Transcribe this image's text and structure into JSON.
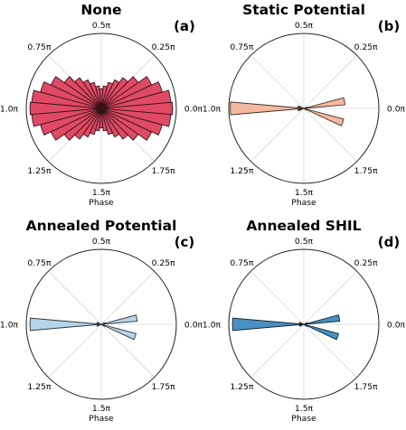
{
  "chart_data": [
    {
      "type": "polar-histogram",
      "title": "None",
      "panel_label": "(a)",
      "axis_label": "Phase",
      "tick_labels": [
        "0.0π",
        "0.25π",
        "0.5π",
        "0.75π",
        "1.0π",
        "1.25π",
        "1.5π",
        "1.75π"
      ],
      "color": "#e04a64",
      "bins": 36,
      "radial_max": 1.0,
      "values": [
        0.95,
        0.93,
        0.84,
        0.74,
        0.6,
        0.5,
        0.42,
        0.36,
        0.3,
        0.26,
        0.3,
        0.36,
        0.42,
        0.5,
        0.6,
        0.74,
        0.84,
        0.93,
        0.95,
        0.93,
        0.84,
        0.74,
        0.6,
        0.5,
        0.42,
        0.36,
        0.3,
        0.26,
        0.3,
        0.36,
        0.42,
        0.5,
        0.6,
        0.74,
        0.84,
        0.93
      ],
      "grid": true
    },
    {
      "type": "polar-histogram",
      "title": "Static Potential",
      "panel_label": "(b)",
      "axis_label": "Phase",
      "tick_labels": [
        "0.0π",
        "0.25π",
        "0.5π",
        "0.75π",
        "1.0π",
        "1.25π",
        "1.5π",
        "1.75π"
      ],
      "color": "#f5b8a0",
      "bins": 36,
      "radial_max": 1.0,
      "values": [
        0.0,
        0.55,
        0.04,
        0,
        0,
        0,
        0,
        0,
        0,
        0,
        0,
        0,
        0,
        0,
        0,
        0,
        0.08,
        0.03,
        0.98,
        0.03,
        0.08,
        0,
        0,
        0,
        0,
        0,
        0,
        0,
        0,
        0,
        0,
        0,
        0,
        0.04,
        0.55,
        0.0
      ],
      "grid": true
    },
    {
      "type": "polar-histogram",
      "title": "Annealed Potential",
      "panel_label": "(c)",
      "axis_label": "Phase",
      "tick_labels": [
        "0.0π",
        "0.25π",
        "0.5π",
        "0.75π",
        "1.0π",
        "1.25π",
        "1.5π",
        "1.75π"
      ],
      "color": "#b7d5e8",
      "bins": 36,
      "radial_max": 1.0,
      "values": [
        0.0,
        0.48,
        0.05,
        0,
        0,
        0,
        0,
        0,
        0,
        0,
        0,
        0,
        0,
        0,
        0,
        0,
        0.06,
        0.02,
        0.95,
        0.02,
        0.06,
        0,
        0,
        0,
        0,
        0,
        0,
        0,
        0,
        0,
        0,
        0,
        0,
        0.05,
        0.48,
        0.0
      ],
      "grid": true
    },
    {
      "type": "polar-histogram",
      "title": "Annealed SHIL",
      "panel_label": "(d)",
      "axis_label": "Phase",
      "tick_labels": [
        "0.0π",
        "0.25π",
        "0.5π",
        "0.75π",
        "1.0π",
        "1.25π",
        "1.5π",
        "1.75π"
      ],
      "color": "#4a90c2",
      "bins": 36,
      "radial_max": 1.0,
      "values": [
        0.0,
        0.48,
        0.05,
        0,
        0,
        0,
        0,
        0,
        0,
        0,
        0,
        0,
        0,
        0,
        0,
        0,
        0.06,
        0.02,
        0.95,
        0.02,
        0.06,
        0,
        0,
        0,
        0,
        0,
        0,
        0,
        0,
        0,
        0,
        0,
        0,
        0.05,
        0.48,
        0.0
      ],
      "grid": true
    }
  ]
}
